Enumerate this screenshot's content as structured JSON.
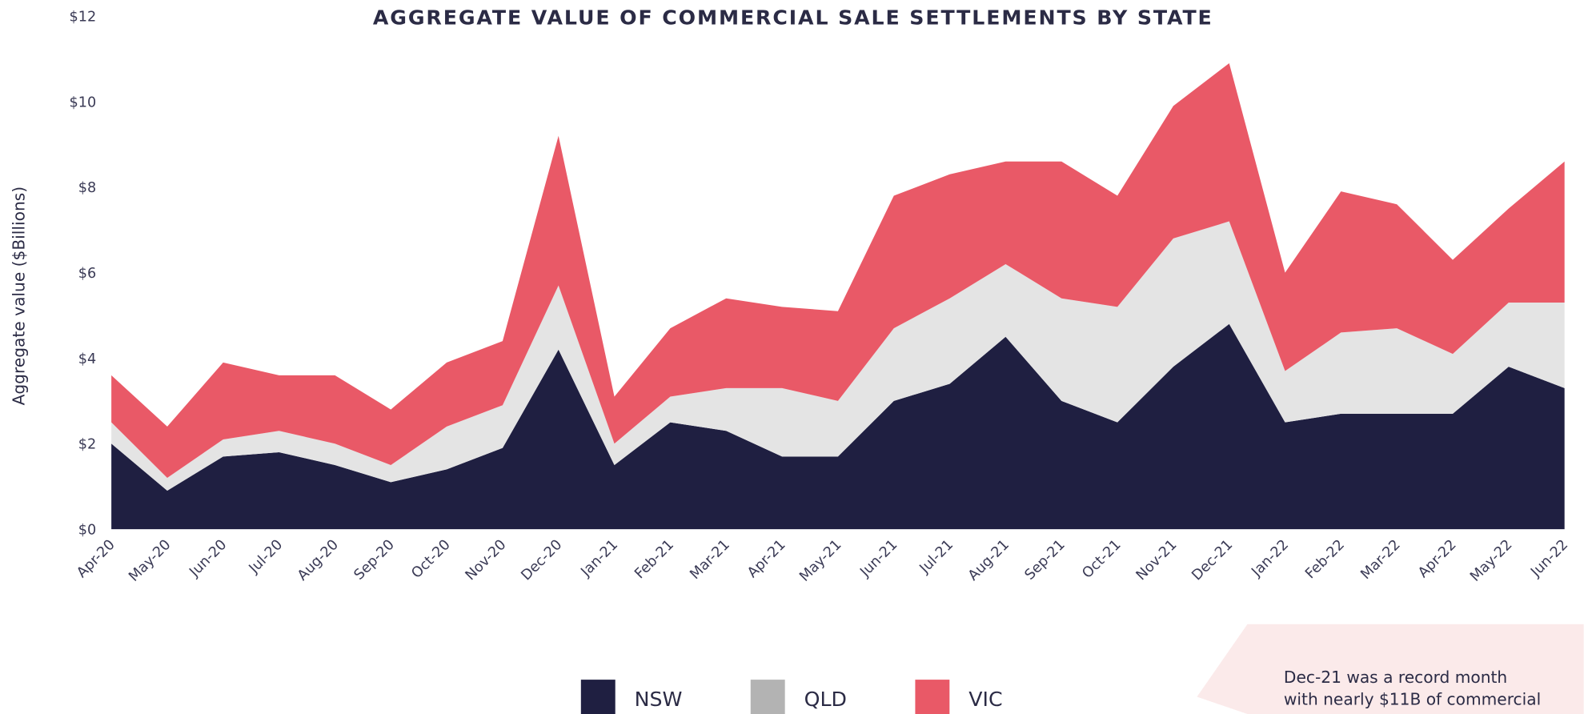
{
  "chart_data": {
    "type": "stacked_area",
    "title": "AGGREGATE VALUE OF COMMERCIAL SALE SETTLEMENTS BY STATE",
    "y_label": "Aggregate value ($Billions)",
    "categories": [
      "Apr-20",
      "May-20",
      "Jun-20",
      "Jul-20",
      "Aug-20",
      "Sep-20",
      "Oct-20",
      "Nov-20",
      "Dec-20",
      "Jan-21",
      "Feb-21",
      "Mar-21",
      "Apr-21",
      "May-21",
      "Jun-21",
      "Jul-21",
      "Aug-21",
      "Sep-21",
      "Oct-21",
      "Nov-21",
      "Dec-21",
      "Jan-22",
      "Feb-22",
      "Mar-22",
      "Apr-22",
      "May-22",
      "Jun-22"
    ],
    "series": [
      {
        "name": "NSW",
        "color": "#1f1f41",
        "values": [
          2.0,
          0.9,
          1.7,
          1.8,
          1.5,
          1.1,
          1.4,
          1.9,
          4.2,
          1.5,
          2.5,
          2.3,
          1.7,
          1.7,
          3.0,
          3.4,
          4.5,
          3.0,
          2.5,
          3.8,
          4.8,
          2.5,
          2.7,
          2.7,
          2.7,
          3.8,
          3.3
        ]
      },
      {
        "name": "QLD",
        "color": "#e4e4e4",
        "values": [
          0.5,
          0.3,
          0.4,
          0.5,
          0.5,
          0.4,
          1.0,
          1.0,
          1.5,
          0.5,
          0.6,
          1.0,
          1.6,
          1.3,
          1.7,
          2.0,
          1.7,
          2.4,
          2.7,
          3.0,
          2.4,
          1.2,
          1.9,
          2.0,
          1.4,
          1.5,
          2.0
        ]
      },
      {
        "name": "VIC",
        "color": "#e95967",
        "values": [
          1.1,
          1.2,
          1.8,
          1.3,
          1.6,
          1.3,
          1.5,
          1.5,
          3.5,
          1.1,
          1.6,
          2.1,
          1.9,
          2.1,
          3.1,
          2.9,
          2.4,
          3.2,
          2.6,
          3.1,
          3.7,
          2.3,
          3.3,
          2.9,
          2.2,
          2.2,
          3.3
        ]
      }
    ],
    "ylim": [
      0,
      12
    ],
    "yticks": [
      {
        "value": 0,
        "label": "$0"
      },
      {
        "value": 2,
        "label": "$2"
      },
      {
        "value": 4,
        "label": "$4"
      },
      {
        "value": 6,
        "label": "$6"
      },
      {
        "value": 8,
        "label": "$8"
      },
      {
        "value": 10,
        "label": "$10"
      },
      {
        "value": 12,
        "label": "$12"
      }
    ],
    "annotation": [
      "Dec-21 was a record month",
      "with nearly $11B of commercial"
    ]
  }
}
